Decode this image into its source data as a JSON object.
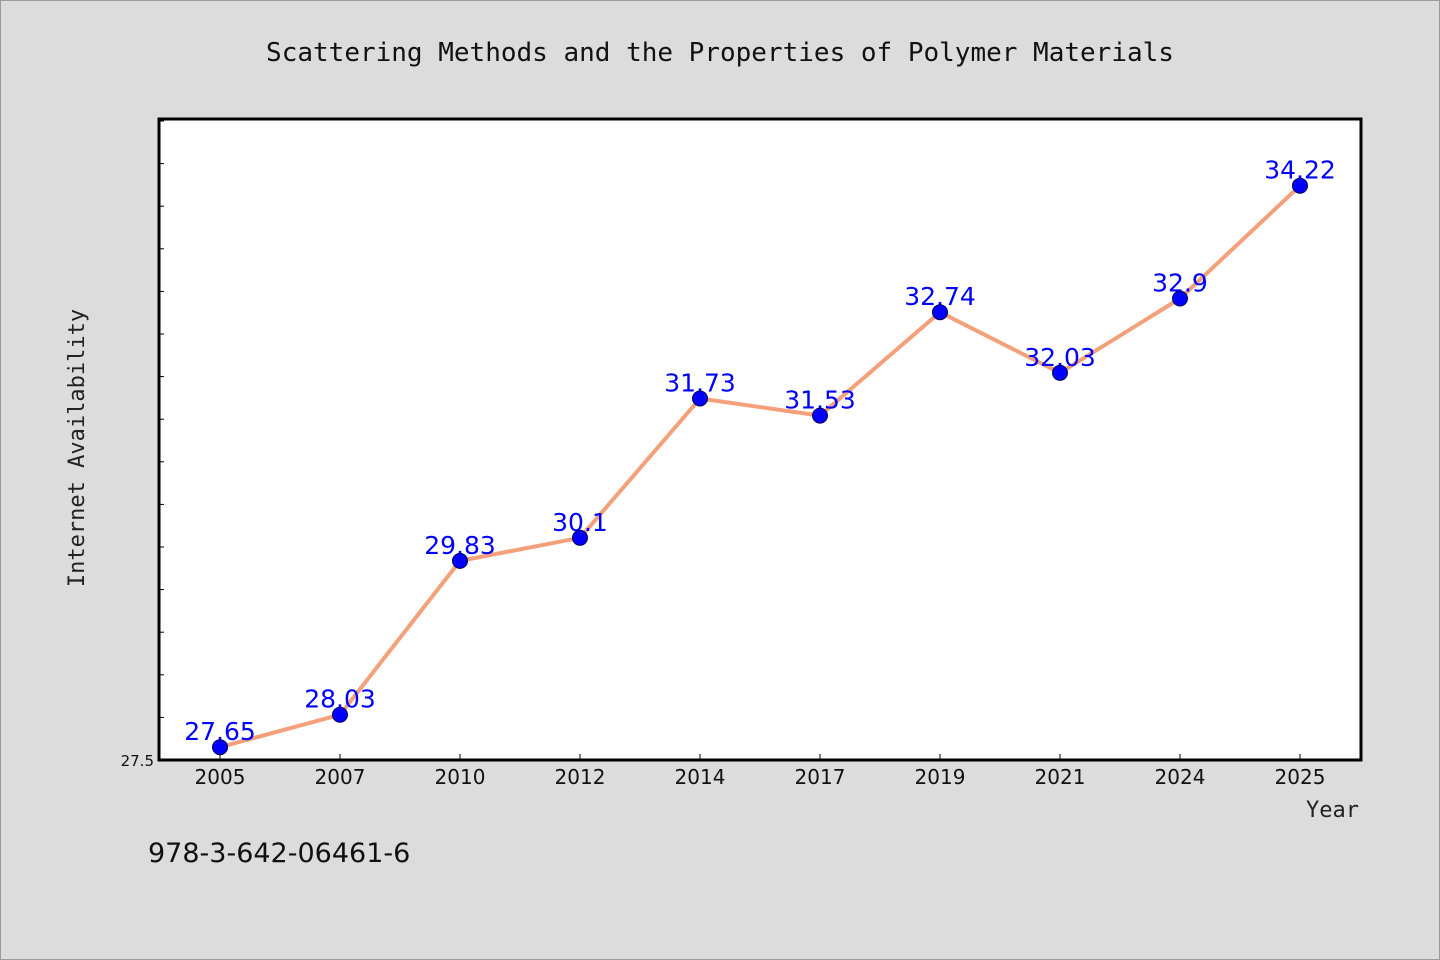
{
  "chart_data": {
    "type": "line",
    "title": "Scattering Methods and the Properties of Polymer Materials",
    "xlabel": "Year",
    "ylabel": "Internet Availability",
    "categories": [
      "2005",
      "2007",
      "2010",
      "2012",
      "2014",
      "2017",
      "2019",
      "2021",
      "2024",
      "2025"
    ],
    "series": [
      {
        "values": [
          27.65,
          28.03,
          29.83,
          30.1,
          31.73,
          31.53,
          32.74,
          32.03,
          32.9,
          34.22
        ],
        "labels": [
          "27.65",
          "28.03",
          "29.83",
          "30.1",
          "31.73",
          "31.53",
          "32.74",
          "32.03",
          "32.9",
          "34.22"
        ],
        "line_color": "#f4a07a",
        "marker_color": "#0000ff"
      }
    ],
    "ylim": [
      27.5,
      35.0
    ],
    "y_tick_labels": [
      "27.5"
    ],
    "grid": false,
    "legend": "none",
    "background_color": "#dcdcdc",
    "plot_background_color": "#ffffff",
    "label_color": "#0000ff"
  },
  "footer": {
    "isbn": "978-3-642-06461-6"
  }
}
